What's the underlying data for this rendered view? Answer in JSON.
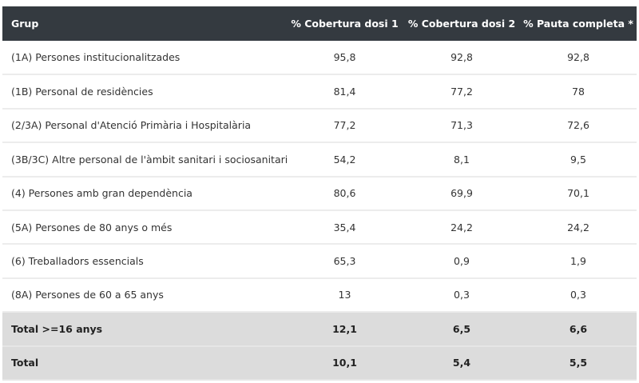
{
  "table": {
    "headers": [
      "Grup",
      "% Cobertura dosi 1",
      "% Cobertura dosi 2",
      "% Pauta completa *"
    ],
    "rows": [
      [
        "(1A) Persones institucionalitzades",
        "95,8",
        "92,8",
        "92,8"
      ],
      [
        "(1B) Personal de residències",
        "81,4",
        "77,2",
        "78"
      ],
      [
        "(2/3A) Personal d'Atenció Primària i Hospitalària",
        "77,2",
        "71,3",
        "72,6"
      ],
      [
        "(3B/3C) Altre personal de l'àmbit sanitari i sociosanitari",
        "54,2",
        "8,1",
        "9,5"
      ],
      [
        "(4) Persones amb gran dependència",
        "80,6",
        "69,9",
        "70,1"
      ],
      [
        "(5A) Persones de 80 anys o més",
        "35,4",
        "24,2",
        "24,2"
      ],
      [
        "(6) Treballadors essencials",
        "65,3",
        "0,9",
        "1,9"
      ],
      [
        "(8A) Persones de 60 a 65 anys",
        "13",
        "0,3",
        "0,3"
      ]
    ],
    "totals": [
      [
        "Total >=16 anys",
        "12,1",
        "6,5",
        "6,6"
      ],
      [
        "Total",
        "10,1",
        "5,4",
        "5,5"
      ]
    ]
  },
  "colors": {
    "header_bg": "#343a40",
    "total_bg": "#dcdcdc"
  }
}
